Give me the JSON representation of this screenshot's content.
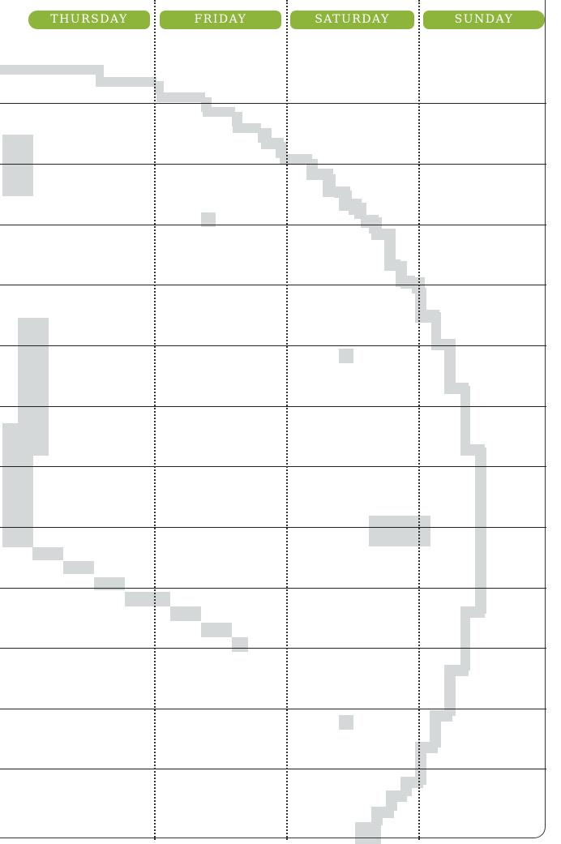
{
  "planner": {
    "days": [
      {
        "label": "THURSDAY"
      },
      {
        "label": "FRIDAY"
      },
      {
        "label": "SATURDAY"
      },
      {
        "label": "SUNDAY"
      }
    ]
  },
  "colors": {
    "tab_green": "#8db53c",
    "tab_text": "#ffffff",
    "pixel_art_gray": "#d5d8d8",
    "rule_line": "#222222"
  },
  "background_art": {
    "style": "pixelated gray circular outline"
  }
}
